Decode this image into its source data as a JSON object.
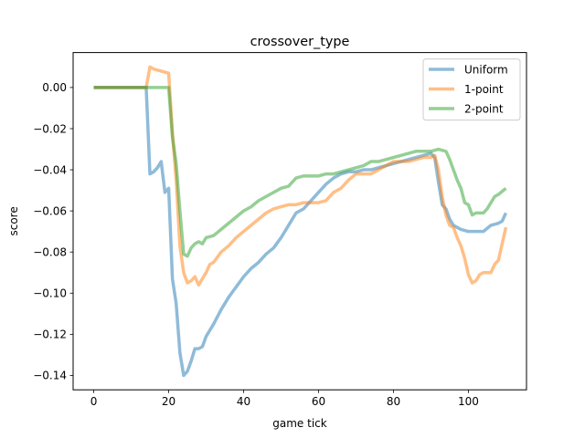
{
  "chart_data": {
    "type": "line",
    "title": "crossover_type",
    "xlabel": "game tick",
    "ylabel": "score",
    "xlim": [
      -5.5,
      115.5
    ],
    "ylim": [
      -0.147,
      0.017
    ],
    "xticks": [
      0,
      20,
      40,
      60,
      80,
      100
    ],
    "yticks": [
      0.0,
      -0.02,
      -0.04,
      -0.06,
      -0.08,
      -0.1,
      -0.12,
      -0.14
    ],
    "ytick_labels": [
      "0.00",
      "−0.02",
      "−0.04",
      "−0.06",
      "−0.08",
      "−0.10",
      "−0.12",
      "−0.14"
    ],
    "grid": false,
    "legend_position": "top-right",
    "series": [
      {
        "name": "Uniform",
        "color": "#1f77b4",
        "points": [
          [
            0,
            0
          ],
          [
            14,
            0
          ],
          [
            15,
            -0.042
          ],
          [
            16,
            -0.041
          ],
          [
            17,
            -0.039
          ],
          [
            18,
            -0.036
          ],
          [
            19,
            -0.051
          ],
          [
            20,
            -0.049
          ],
          [
            21,
            -0.093
          ],
          [
            22,
            -0.105
          ],
          [
            23,
            -0.129
          ],
          [
            24,
            -0.14
          ],
          [
            25,
            -0.138
          ],
          [
            26,
            -0.133
          ],
          [
            27,
            -0.127
          ],
          [
            28,
            -0.127
          ],
          [
            29,
            -0.126
          ],
          [
            30,
            -0.121
          ],
          [
            32,
            -0.115
          ],
          [
            34,
            -0.108
          ],
          [
            36,
            -0.102
          ],
          [
            38,
            -0.097
          ],
          [
            40,
            -0.092
          ],
          [
            42,
            -0.088
          ],
          [
            44,
            -0.085
          ],
          [
            46,
            -0.081
          ],
          [
            48,
            -0.078
          ],
          [
            50,
            -0.073
          ],
          [
            52,
            -0.067
          ],
          [
            54,
            -0.061
          ],
          [
            56,
            -0.059
          ],
          [
            58,
            -0.055
          ],
          [
            60,
            -0.051
          ],
          [
            62,
            -0.047
          ],
          [
            64,
            -0.044
          ],
          [
            66,
            -0.042
          ],
          [
            68,
            -0.041
          ],
          [
            70,
            -0.041
          ],
          [
            72,
            -0.04
          ],
          [
            74,
            -0.04
          ],
          [
            76,
            -0.039
          ],
          [
            78,
            -0.038
          ],
          [
            80,
            -0.037
          ],
          [
            82,
            -0.036
          ],
          [
            84,
            -0.035
          ],
          [
            86,
            -0.034
          ],
          [
            88,
            -0.033
          ],
          [
            90,
            -0.032
          ],
          [
            91,
            -0.034
          ],
          [
            92,
            -0.046
          ],
          [
            93,
            -0.057
          ],
          [
            94,
            -0.059
          ],
          [
            95,
            -0.064
          ],
          [
            96,
            -0.067
          ],
          [
            98,
            -0.069
          ],
          [
            100,
            -0.07
          ],
          [
            102,
            -0.07
          ],
          [
            104,
            -0.07
          ],
          [
            106,
            -0.067
          ],
          [
            108,
            -0.066
          ],
          [
            109,
            -0.065
          ],
          [
            110,
            -0.061
          ]
        ]
      },
      {
        "name": "1-point",
        "color": "#ff7f0e",
        "points": [
          [
            0,
            0
          ],
          [
            14,
            0
          ],
          [
            15,
            0.01
          ],
          [
            16,
            0.009
          ],
          [
            18,
            0.008
          ],
          [
            20,
            0.007
          ],
          [
            21,
            -0.022
          ],
          [
            22,
            -0.045
          ],
          [
            23,
            -0.077
          ],
          [
            24,
            -0.09
          ],
          [
            25,
            -0.095
          ],
          [
            26,
            -0.094
          ],
          [
            27,
            -0.092
          ],
          [
            28,
            -0.096
          ],
          [
            29,
            -0.093
          ],
          [
            30,
            -0.09
          ],
          [
            31,
            -0.086
          ],
          [
            32,
            -0.085
          ],
          [
            34,
            -0.08
          ],
          [
            36,
            -0.077
          ],
          [
            38,
            -0.073
          ],
          [
            40,
            -0.07
          ],
          [
            42,
            -0.067
          ],
          [
            44,
            -0.064
          ],
          [
            46,
            -0.061
          ],
          [
            48,
            -0.059
          ],
          [
            50,
            -0.058
          ],
          [
            52,
            -0.057
          ],
          [
            54,
            -0.057
          ],
          [
            56,
            -0.056
          ],
          [
            58,
            -0.056
          ],
          [
            60,
            -0.056
          ],
          [
            62,
            -0.055
          ],
          [
            64,
            -0.051
          ],
          [
            66,
            -0.049
          ],
          [
            68,
            -0.045
          ],
          [
            70,
            -0.042
          ],
          [
            72,
            -0.042
          ],
          [
            74,
            -0.042
          ],
          [
            76,
            -0.04
          ],
          [
            78,
            -0.038
          ],
          [
            80,
            -0.036
          ],
          [
            82,
            -0.036
          ],
          [
            84,
            -0.036
          ],
          [
            86,
            -0.035
          ],
          [
            88,
            -0.034
          ],
          [
            90,
            -0.034
          ],
          [
            91,
            -0.033
          ],
          [
            92,
            -0.04
          ],
          [
            93,
            -0.053
          ],
          [
            94,
            -0.062
          ],
          [
            95,
            -0.067
          ],
          [
            96,
            -0.068
          ],
          [
            97,
            -0.073
          ],
          [
            98,
            -0.077
          ],
          [
            99,
            -0.083
          ],
          [
            100,
            -0.091
          ],
          [
            101,
            -0.095
          ],
          [
            102,
            -0.094
          ],
          [
            103,
            -0.091
          ],
          [
            104,
            -0.09
          ],
          [
            106,
            -0.09
          ],
          [
            107,
            -0.086
          ],
          [
            108,
            -0.084
          ],
          [
            109,
            -0.076
          ],
          [
            110,
            -0.068
          ]
        ]
      },
      {
        "name": "2-point",
        "color": "#2ca02c",
        "points": [
          [
            0,
            0
          ],
          [
            20,
            0
          ],
          [
            21,
            -0.024
          ],
          [
            22,
            -0.037
          ],
          [
            23,
            -0.06
          ],
          [
            24,
            -0.081
          ],
          [
            25,
            -0.082
          ],
          [
            26,
            -0.078
          ],
          [
            27,
            -0.076
          ],
          [
            28,
            -0.075
          ],
          [
            29,
            -0.076
          ],
          [
            30,
            -0.073
          ],
          [
            32,
            -0.072
          ],
          [
            34,
            -0.069
          ],
          [
            36,
            -0.066
          ],
          [
            38,
            -0.063
          ],
          [
            40,
            -0.06
          ],
          [
            42,
            -0.058
          ],
          [
            44,
            -0.055
          ],
          [
            46,
            -0.053
          ],
          [
            48,
            -0.051
          ],
          [
            50,
            -0.049
          ],
          [
            52,
            -0.048
          ],
          [
            54,
            -0.044
          ],
          [
            56,
            -0.043
          ],
          [
            58,
            -0.043
          ],
          [
            60,
            -0.043
          ],
          [
            62,
            -0.042
          ],
          [
            64,
            -0.042
          ],
          [
            66,
            -0.041
          ],
          [
            68,
            -0.04
          ],
          [
            70,
            -0.039
          ],
          [
            72,
            -0.038
          ],
          [
            74,
            -0.036
          ],
          [
            76,
            -0.036
          ],
          [
            78,
            -0.035
          ],
          [
            80,
            -0.034
          ],
          [
            82,
            -0.033
          ],
          [
            84,
            -0.032
          ],
          [
            86,
            -0.031
          ],
          [
            88,
            -0.031
          ],
          [
            90,
            -0.031
          ],
          [
            92,
            -0.03
          ],
          [
            94,
            -0.031
          ],
          [
            95,
            -0.035
          ],
          [
            96,
            -0.04
          ],
          [
            97,
            -0.045
          ],
          [
            98,
            -0.049
          ],
          [
            99,
            -0.056
          ],
          [
            100,
            -0.057
          ],
          [
            101,
            -0.062
          ],
          [
            102,
            -0.061
          ],
          [
            104,
            -0.061
          ],
          [
            105,
            -0.059
          ],
          [
            106,
            -0.056
          ],
          [
            107,
            -0.053
          ],
          [
            108,
            -0.052
          ],
          [
            110,
            -0.049
          ]
        ]
      }
    ]
  }
}
